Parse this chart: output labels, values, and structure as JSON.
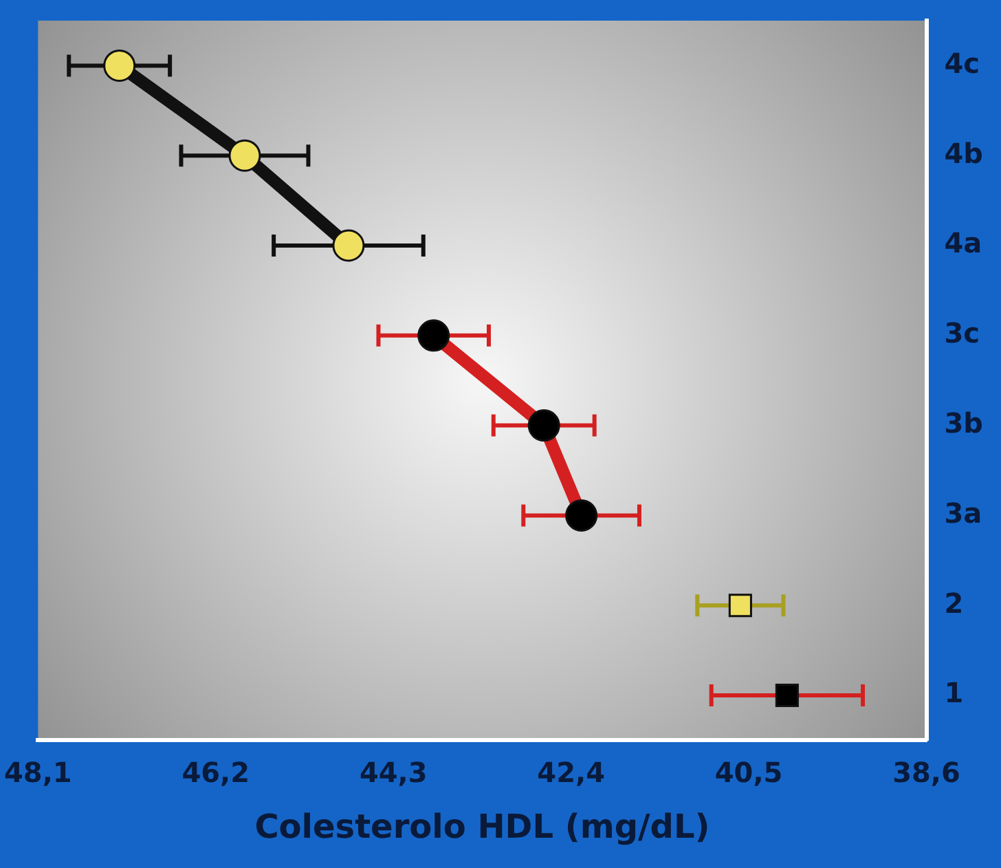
{
  "chart_data": {
    "type": "line",
    "orientation": "horizontal",
    "xlabel": "Colesterolo HDL (mg/dL)",
    "categories": [
      "4c",
      "4b",
      "4a",
      "3c",
      "3b",
      "3a",
      "2",
      "1"
    ],
    "xlim": [
      48.1,
      38.6
    ],
    "xticks": [
      {
        "value": 48.1,
        "label": "48,1"
      },
      {
        "value": 46.2,
        "label": "46,2"
      },
      {
        "value": 44.3,
        "label": "44,3"
      },
      {
        "value": 42.4,
        "label": "42,4"
      },
      {
        "value": 40.5,
        "label": "40,5"
      },
      {
        "value": 38.6,
        "label": "38,6"
      }
    ],
    "grid": false,
    "legend": false,
    "series": [
      {
        "marker": "square",
        "color": "#d42020",
        "colors": [
          null,
          null,
          null,
          null,
          null,
          null,
          null,
          "#000000"
        ],
        "values": [
          null,
          null,
          null,
          null,
          null,
          null,
          null,
          40.09
        ],
        "errors": [
          null,
          null,
          null,
          null,
          null,
          null,
          null,
          0.81
        ]
      },
      {
        "marker": "square",
        "color": "#a8a020",
        "colors": [
          null,
          null,
          null,
          null,
          null,
          null,
          "#f0e060",
          null
        ],
        "values": [
          null,
          null,
          null,
          null,
          null,
          null,
          40.59,
          null
        ],
        "errors": [
          null,
          null,
          null,
          null,
          null,
          null,
          0.46,
          null
        ]
      },
      {
        "marker": "circle",
        "color": "#d42020",
        "colors": [
          null,
          null,
          null,
          "#000000",
          "#000000",
          "#000000",
          null,
          null
        ],
        "values": [
          null,
          null,
          null,
          43.87,
          42.69,
          42.29,
          null,
          null
        ],
        "errors": [
          null,
          null,
          null,
          0.59,
          0.54,
          0.62,
          null,
          null
        ]
      },
      {
        "marker": "circle",
        "color": "#111111",
        "colors": [
          "#f0e060",
          "#f0e060",
          "#f0e060",
          null,
          null,
          null,
          null,
          null
        ],
        "values": [
          47.23,
          45.89,
          44.78,
          null,
          null,
          null,
          null,
          null
        ],
        "errors": [
          0.54,
          0.68,
          0.8,
          null,
          null,
          null,
          null,
          null
        ]
      }
    ]
  }
}
